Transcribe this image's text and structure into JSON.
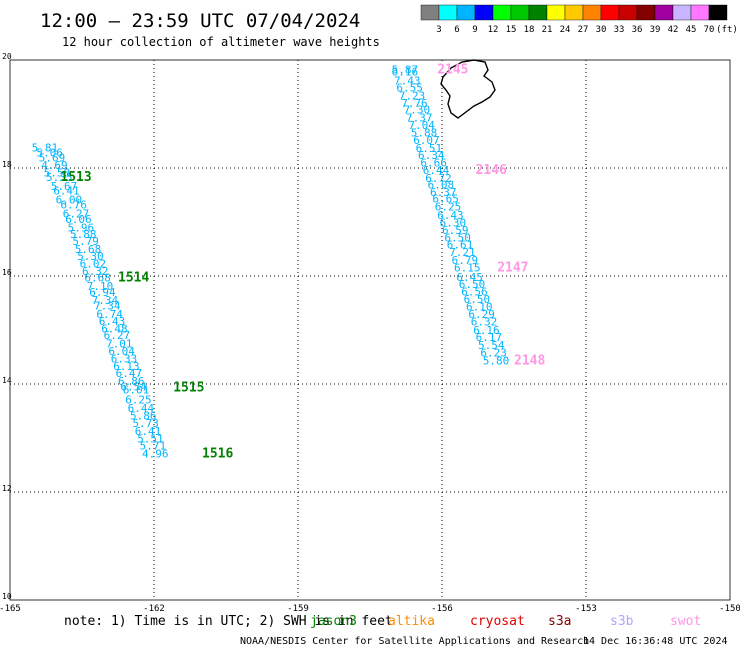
{
  "header": {
    "title": "12:00 — 23:59 UTC 07/04/2024",
    "subtitle": "12 hour collection of altimeter wave heights"
  },
  "colorbar": {
    "colors": [
      "#808080",
      "#00ffff",
      "#00b4ff",
      "#0000ff",
      "#00ff00",
      "#00c800",
      "#008200",
      "#ffff00",
      "#ffc800",
      "#ff8200",
      "#ff0000",
      "#c80000",
      "#820000",
      "#a000a0",
      "#c8b4ff",
      "#ff78ff",
      "#000000"
    ],
    "labels": [
      "3",
      "6",
      "9",
      "12",
      "15",
      "18",
      "21",
      "24",
      "27",
      "30",
      "33",
      "36",
      "39",
      "42",
      "45",
      "70",
      "(ft)"
    ]
  },
  "footer": {
    "note": "note:  1) Time is in UTC; 2) SWH is in feet",
    "credit": "NOAA/NESDIS Center for Satellite Applications and Research",
    "timestamp": "14 Dec 16:36:48 UTC 2024",
    "satellites": [
      {
        "name": "jason3",
        "color": "#008200"
      },
      {
        "name": "altika",
        "color": "#ff8c00"
      },
      {
        "name": "cryosat",
        "color": "#e00000"
      },
      {
        "name": "s3a",
        "color": "#820000"
      },
      {
        "name": "s3b",
        "color": "#b4a0ff"
      },
      {
        "name": "swot",
        "color": "#ff96e6"
      }
    ]
  },
  "chart_data": {
    "type": "scatter",
    "x_range": [
      -165,
      -150
    ],
    "y_range": [
      10,
      20
    ],
    "x_ticks": [
      "-165",
      "-162",
      "-159",
      "-156",
      "-153",
      "-150"
    ],
    "y_ticks": [
      "10",
      "12",
      "14",
      "16",
      "18",
      "20"
    ],
    "grid": true,
    "value_color": "#00b4ff",
    "land_color": "#000000",
    "tracks": [
      {
        "satellite": "jason3",
        "color": "#008200",
        "points": [
          {
            "lon": -164.55,
            "lat": 18.31,
            "v": "5.81"
          },
          {
            "lon": -164.45,
            "lat": 18.21,
            "v": "5.06"
          },
          {
            "lon": -164.4,
            "lat": 18.12,
            "v": "5.69"
          },
          {
            "lon": -164.35,
            "lat": 17.98,
            "v": "4.69"
          },
          {
            "lon": -164.3,
            "lat": 17.84,
            "v": "5.58"
          },
          {
            "lon": -164.25,
            "lat": 17.76,
            "v": "5.35"
          },
          {
            "lon": -164.15,
            "lat": 17.59,
            "v": "5.67"
          },
          {
            "lon": -164.1,
            "lat": 17.51,
            "v": "6.41"
          },
          {
            "lon": -164.05,
            "lat": 17.34,
            "v": "6.00"
          },
          {
            "lon": -163.95,
            "lat": 17.25,
            "v": "6.76"
          },
          {
            "lon": -163.9,
            "lat": 17.08,
            "v": "6.27"
          },
          {
            "lon": -163.85,
            "lat": 16.98,
            "v": "6.06"
          },
          {
            "lon": -163.8,
            "lat": 16.82,
            "v": "5.96"
          },
          {
            "lon": -163.75,
            "lat": 16.7,
            "v": "5.88"
          },
          {
            "lon": -163.7,
            "lat": 16.57,
            "v": "5.79"
          },
          {
            "lon": -163.65,
            "lat": 16.43,
            "v": "5.68"
          },
          {
            "lon": -163.6,
            "lat": 16.3,
            "v": "5.30"
          },
          {
            "lon": -163.55,
            "lat": 16.16,
            "v": "6.02"
          },
          {
            "lon": -163.5,
            "lat": 16.02,
            "v": "6.32"
          },
          {
            "lon": -163.45,
            "lat": 15.9,
            "v": "6.68"
          },
          {
            "lon": -163.4,
            "lat": 15.74,
            "v": "7.10"
          },
          {
            "lon": -163.35,
            "lat": 15.63,
            "v": "6.94"
          },
          {
            "lon": -163.3,
            "lat": 15.48,
            "v": "7.34"
          },
          {
            "lon": -163.25,
            "lat": 15.38,
            "v": "7.34"
          },
          {
            "lon": -163.2,
            "lat": 15.22,
            "v": "6.74"
          },
          {
            "lon": -163.15,
            "lat": 15.09,
            "v": "6.43"
          },
          {
            "lon": -163.1,
            "lat": 14.95,
            "v": "6.48"
          },
          {
            "lon": -163.05,
            "lat": 14.83,
            "v": "6.27"
          },
          {
            "lon": -163.0,
            "lat": 14.68,
            "v": "7.01"
          },
          {
            "lon": -162.95,
            "lat": 14.54,
            "v": "6.04"
          },
          {
            "lon": -162.9,
            "lat": 14.4,
            "v": "6.33"
          },
          {
            "lon": -162.85,
            "lat": 14.26,
            "v": "6.13"
          },
          {
            "lon": -162.8,
            "lat": 14.13,
            "v": "6.47"
          },
          {
            "lon": -162.75,
            "lat": 13.98,
            "v": "6.86"
          },
          {
            "lon": -162.7,
            "lat": 13.88,
            "v": "6.54"
          },
          {
            "lon": -162.65,
            "lat": 13.82,
            "v": "6.01"
          },
          {
            "lon": -162.6,
            "lat": 13.64,
            "v": "6.25"
          },
          {
            "lon": -162.55,
            "lat": 13.48,
            "v": "6.44"
          },
          {
            "lon": -162.5,
            "lat": 13.34,
            "v": "5.86"
          },
          {
            "lon": -162.45,
            "lat": 13.2,
            "v": "5.73"
          },
          {
            "lon": -162.4,
            "lat": 13.06,
            "v": "6.41"
          },
          {
            "lon": -162.35,
            "lat": 12.92,
            "v": "5.51"
          },
          {
            "lon": -162.3,
            "lat": 12.79,
            "v": "5.71"
          },
          {
            "lon": -162.25,
            "lat": 12.64,
            "v": "4.96"
          }
        ],
        "labels": [
          {
            "lon": -163.95,
            "lat": 17.76,
            "text": "1513"
          },
          {
            "lon": -162.75,
            "lat": 15.9,
            "text": "1514"
          },
          {
            "lon": -161.6,
            "lat": 13.86,
            "text": "1515"
          },
          {
            "lon": -161.0,
            "lat": 12.64,
            "text": "1516"
          }
        ]
      },
      {
        "satellite": "swot",
        "color": "#ff96e6",
        "points": [
          {
            "lon": -157.05,
            "lat": 19.75,
            "v": "5.87"
          },
          {
            "lon": -157.05,
            "lat": 19.71,
            "v": "6.16"
          },
          {
            "lon": -157.0,
            "lat": 19.55,
            "v": "7.43"
          },
          {
            "lon": -156.95,
            "lat": 19.42,
            "v": "6.55"
          },
          {
            "lon": -156.9,
            "lat": 19.27,
            "v": "7.23"
          },
          {
            "lon": -156.85,
            "lat": 19.13,
            "v": "7.76"
          },
          {
            "lon": -156.8,
            "lat": 19.01,
            "v": "7.30"
          },
          {
            "lon": -156.75,
            "lat": 18.86,
            "v": "7.37"
          },
          {
            "lon": -156.7,
            "lat": 18.72,
            "v": "7.04"
          },
          {
            "lon": -156.65,
            "lat": 18.58,
            "v": "5.88"
          },
          {
            "lon": -156.6,
            "lat": 18.44,
            "v": "6.07"
          },
          {
            "lon": -156.55,
            "lat": 18.3,
            "v": "6.51"
          },
          {
            "lon": -156.5,
            "lat": 18.17,
            "v": "6.34"
          },
          {
            "lon": -156.45,
            "lat": 18.03,
            "v": "6.66"
          },
          {
            "lon": -156.4,
            "lat": 17.89,
            "v": "6.44"
          },
          {
            "lon": -156.35,
            "lat": 17.74,
            "v": "6.72"
          },
          {
            "lon": -156.3,
            "lat": 17.62,
            "v": "6.08"
          },
          {
            "lon": -156.25,
            "lat": 17.48,
            "v": "6.37"
          },
          {
            "lon": -156.2,
            "lat": 17.36,
            "v": "6.65"
          },
          {
            "lon": -156.15,
            "lat": 17.21,
            "v": "6.25"
          },
          {
            "lon": -156.1,
            "lat": 17.06,
            "v": "6.43"
          },
          {
            "lon": -156.05,
            "lat": 16.92,
            "v": "6.30"
          },
          {
            "lon": -156.0,
            "lat": 16.78,
            "v": "6.59"
          },
          {
            "lon": -155.95,
            "lat": 16.64,
            "v": "6.50"
          },
          {
            "lon": -155.9,
            "lat": 16.51,
            "v": "6.61"
          },
          {
            "lon": -155.85,
            "lat": 16.37,
            "v": "7.21"
          },
          {
            "lon": -155.8,
            "lat": 16.22,
            "v": "6.79"
          },
          {
            "lon": -155.75,
            "lat": 16.08,
            "v": "6.15"
          },
          {
            "lon": -155.7,
            "lat": 15.91,
            "v": "6.45"
          },
          {
            "lon": -155.65,
            "lat": 15.78,
            "v": "6.50"
          },
          {
            "lon": -155.6,
            "lat": 15.64,
            "v": "6.56"
          },
          {
            "lon": -155.55,
            "lat": 15.5,
            "v": "6.50"
          },
          {
            "lon": -155.5,
            "lat": 15.36,
            "v": "6.10"
          },
          {
            "lon": -155.45,
            "lat": 15.22,
            "v": "6.29"
          },
          {
            "lon": -155.4,
            "lat": 15.08,
            "v": "6.32"
          },
          {
            "lon": -155.35,
            "lat": 14.93,
            "v": "6.16"
          },
          {
            "lon": -155.3,
            "lat": 14.8,
            "v": "6.17"
          },
          {
            "lon": -155.25,
            "lat": 14.65,
            "v": "5.54"
          },
          {
            "lon": -155.2,
            "lat": 14.51,
            "v": "6.23"
          },
          {
            "lon": -155.15,
            "lat": 14.36,
            "v": "5.80"
          }
        ],
        "labels": [
          {
            "lon": -156.1,
            "lat": 19.75,
            "text": "2145"
          },
          {
            "lon": -155.3,
            "lat": 17.89,
            "text": "2146"
          },
          {
            "lon": -154.85,
            "lat": 16.08,
            "text": "2147"
          },
          {
            "lon": -154.5,
            "lat": 14.36,
            "text": "2148"
          }
        ]
      }
    ]
  }
}
